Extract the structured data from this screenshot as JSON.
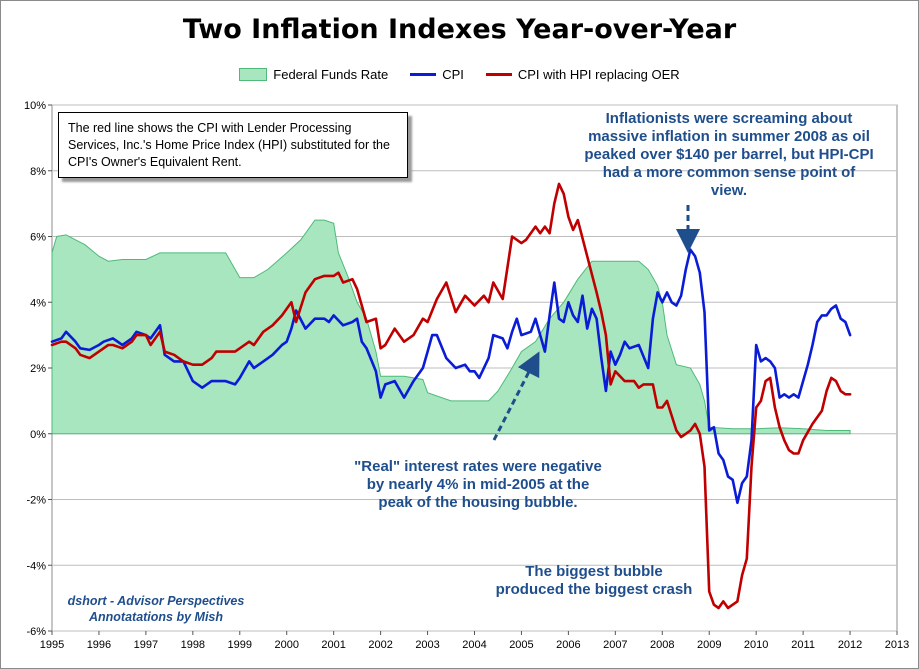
{
  "chart_data": {
    "type": "line",
    "title": "Two Inflation Indexes Year-over-Year",
    "xlim": [
      1995,
      2013
    ],
    "ylim": [
      -6,
      10
    ],
    "x_ticks": [
      "1995",
      "1996",
      "1997",
      "1998",
      "1999",
      "2000",
      "2001",
      "2002",
      "2003",
      "2004",
      "2005",
      "2006",
      "2007",
      "2008",
      "2009",
      "2010",
      "2011",
      "2012",
      "2013"
    ],
    "y_ticks": [
      "-6%",
      "-4%",
      "-2%",
      "0%",
      "2%",
      "4%",
      "6%",
      "8%",
      "10%"
    ],
    "y_tick_values": [
      -6,
      -4,
      -2,
      0,
      2,
      4,
      6,
      8,
      10
    ],
    "grid": true,
    "legend": "top",
    "series": [
      {
        "name": "Federal Funds Rate",
        "kind": "area",
        "color": "#a8e6bf",
        "stroke": "#4fb97a",
        "x": [
          1995.0,
          1995.1,
          1995.3,
          1995.5,
          1995.7,
          1996.0,
          1996.2,
          1996.5,
          1997.0,
          1997.3,
          1997.6,
          1998.0,
          1998.7,
          1998.9,
          1999.0,
          1999.3,
          1999.6,
          2000.0,
          2000.3,
          2000.6,
          2000.8,
          2001.0,
          2001.1,
          2001.3,
          2001.5,
          2001.7,
          2001.9,
          2002.0,
          2002.5,
          2002.9,
          2003.0,
          2003.5,
          2003.9,
          2004.3,
          2004.5,
          2004.8,
          2005.0,
          2005.3,
          2005.6,
          2005.9,
          2006.2,
          2006.5,
          2006.8,
          2007.0,
          2007.5,
          2007.7,
          2007.9,
          2008.0,
          2008.1,
          2008.3,
          2008.6,
          2008.8,
          2008.9,
          2009.0,
          2009.5,
          2010.0,
          2010.5,
          2011.0,
          2011.5,
          2012.0
        ],
        "values": [
          5.5,
          6.0,
          6.05,
          5.9,
          5.75,
          5.4,
          5.25,
          5.3,
          5.3,
          5.5,
          5.5,
          5.5,
          5.5,
          5.0,
          4.75,
          4.75,
          5.0,
          5.5,
          5.9,
          6.5,
          6.5,
          6.4,
          5.5,
          4.8,
          4.0,
          3.5,
          2.5,
          1.75,
          1.75,
          1.65,
          1.25,
          1.0,
          1.0,
          1.0,
          1.3,
          2.0,
          2.5,
          2.8,
          3.5,
          4.0,
          4.7,
          5.25,
          5.25,
          5.25,
          5.25,
          5.0,
          4.5,
          4.0,
          3.0,
          2.1,
          2.0,
          1.5,
          1.0,
          0.2,
          0.15,
          0.15,
          0.18,
          0.15,
          0.1,
          0.1
        ]
      },
      {
        "name": "CPI",
        "kind": "line",
        "color": "#0b1cd6",
        "x": [
          1995.0,
          1995.2,
          1995.3,
          1995.5,
          1995.6,
          1995.8,
          1996.0,
          1996.1,
          1996.3,
          1996.5,
          1996.7,
          1996.8,
          1997.0,
          1997.1,
          1997.3,
          1997.4,
          1997.6,
          1997.8,
          1998.0,
          1998.2,
          1998.4,
          1998.5,
          1998.7,
          1998.9,
          1999.0,
          1999.2,
          1999.3,
          1999.5,
          1999.7,
          1999.9,
          2000.0,
          2000.1,
          2000.2,
          2000.4,
          2000.6,
          2000.8,
          2000.9,
          2001.0,
          2001.2,
          2001.4,
          2001.5,
          2001.6,
          2001.7,
          2001.9,
          2002.0,
          2002.1,
          2002.3,
          2002.5,
          2002.7,
          2002.9,
          2003.0,
          2003.1,
          2003.2,
          2003.4,
          2003.6,
          2003.8,
          2003.9,
          2004.0,
          2004.1,
          2004.3,
          2004.4,
          2004.6,
          2004.7,
          2004.8,
          2004.9,
          2005.0,
          2005.2,
          2005.3,
          2005.5,
          2005.6,
          2005.7,
          2005.8,
          2005.9,
          2006.0,
          2006.1,
          2006.2,
          2006.3,
          2006.4,
          2006.5,
          2006.6,
          2006.7,
          2006.8,
          2006.9,
          2007.0,
          2007.1,
          2007.2,
          2007.3,
          2007.5,
          2007.7,
          2007.8,
          2007.9,
          2008.0,
          2008.1,
          2008.2,
          2008.3,
          2008.4,
          2008.5,
          2008.6,
          2008.7,
          2008.8,
          2008.9,
          2009.0,
          2009.1,
          2009.2,
          2009.3,
          2009.4,
          2009.5,
          2009.6,
          2009.7,
          2009.8,
          2009.9,
          2010.0,
          2010.1,
          2010.2,
          2010.3,
          2010.4,
          2010.5,
          2010.6,
          2010.7,
          2010.8,
          2010.9,
          2011.0,
          2011.1,
          2011.2,
          2011.3,
          2011.4,
          2011.5,
          2011.6,
          2011.7,
          2011.8,
          2011.9,
          2012.0
        ],
        "values": [
          2.8,
          2.9,
          3.1,
          2.8,
          2.6,
          2.55,
          2.7,
          2.8,
          2.9,
          2.7,
          2.9,
          3.1,
          3.0,
          2.9,
          3.3,
          2.4,
          2.2,
          2.2,
          1.6,
          1.4,
          1.6,
          1.6,
          1.6,
          1.5,
          1.7,
          2.2,
          2.0,
          2.2,
          2.4,
          2.7,
          2.8,
          3.2,
          3.75,
          3.2,
          3.5,
          3.5,
          3.4,
          3.6,
          3.3,
          3.4,
          3.5,
          2.8,
          2.6,
          1.9,
          1.1,
          1.5,
          1.6,
          1.1,
          1.6,
          2.0,
          2.5,
          3.0,
          3.0,
          2.3,
          2.0,
          2.1,
          1.9,
          1.9,
          1.7,
          2.3,
          3.0,
          2.9,
          2.6,
          3.1,
          3.5,
          3.0,
          3.1,
          3.5,
          2.5,
          3.6,
          4.6,
          3.5,
          3.4,
          4.0,
          3.6,
          3.4,
          4.2,
          3.2,
          3.8,
          3.5,
          2.3,
          1.3,
          2.5,
          2.1,
          2.4,
          2.8,
          2.6,
          2.7,
          2.0,
          3.5,
          4.3,
          4.0,
          4.3,
          4.0,
          3.9,
          4.2,
          5.0,
          5.6,
          5.4,
          4.9,
          3.7,
          0.1,
          0.2,
          -0.6,
          -0.8,
          -1.3,
          -1.4,
          -2.1,
          -1.5,
          -1.3,
          -0.2,
          2.7,
          2.2,
          2.3,
          2.2,
          2.0,
          1.1,
          1.2,
          1.1,
          1.2,
          1.1,
          1.6,
          2.1,
          2.7,
          3.4,
          3.6,
          3.6,
          3.8,
          3.9,
          3.5,
          3.4,
          3.0
        ]
      },
      {
        "name": "CPI with HPI replacing OER",
        "kind": "line",
        "color": "#c00000",
        "x": [
          1995.0,
          1995.2,
          1995.3,
          1995.5,
          1995.6,
          1995.8,
          1996.0,
          1996.2,
          1996.3,
          1996.5,
          1996.7,
          1996.8,
          1997.0,
          1997.1,
          1997.3,
          1997.4,
          1997.6,
          1997.8,
          1998.0,
          1998.2,
          1998.4,
          1998.5,
          1998.7,
          1998.9,
          1999.0,
          1999.2,
          1999.3,
          1999.5,
          1999.7,
          1999.9,
          2000.0,
          2000.1,
          2000.2,
          2000.4,
          2000.5,
          2000.6,
          2000.8,
          2000.9,
          2001.0,
          2001.1,
          2001.2,
          2001.4,
          2001.5,
          2001.6,
          2001.7,
          2001.9,
          2002.0,
          2002.1,
          2002.3,
          2002.5,
          2002.7,
          2002.9,
          2003.0,
          2003.2,
          2003.4,
          2003.6,
          2003.8,
          2004.0,
          2004.2,
          2004.3,
          2004.4,
          2004.6,
          2004.8,
          2005.0,
          2005.1,
          2005.3,
          2005.4,
          2005.5,
          2005.6,
          2005.7,
          2005.8,
          2005.9,
          2006.0,
          2006.1,
          2006.2,
          2006.4,
          2006.6,
          2006.7,
          2006.8,
          2006.9,
          2007.0,
          2007.2,
          2007.4,
          2007.5,
          2007.6,
          2007.8,
          2007.9,
          2008.0,
          2008.1,
          2008.3,
          2008.4,
          2008.5,
          2008.6,
          2008.7,
          2008.8,
          2008.9,
          2009.0,
          2009.1,
          2009.2,
          2009.3,
          2009.4,
          2009.5,
          2009.6,
          2009.7,
          2009.8,
          2009.9,
          2010.0,
          2010.1,
          2010.2,
          2010.3,
          2010.4,
          2010.5,
          2010.6,
          2010.7,
          2010.8,
          2010.9,
          2011.0,
          2011.2,
          2011.4,
          2011.5,
          2011.6,
          2011.7,
          2011.8,
          2011.9,
          2012.0
        ],
        "values": [
          2.7,
          2.8,
          2.8,
          2.6,
          2.4,
          2.3,
          2.5,
          2.7,
          2.7,
          2.6,
          2.8,
          3.0,
          3.0,
          2.7,
          3.1,
          2.5,
          2.4,
          2.2,
          2.1,
          2.1,
          2.3,
          2.5,
          2.5,
          2.5,
          2.6,
          2.8,
          2.7,
          3.1,
          3.3,
          3.6,
          3.8,
          4.0,
          3.4,
          4.3,
          4.5,
          4.7,
          4.8,
          4.8,
          4.8,
          4.9,
          4.6,
          4.7,
          4.4,
          3.9,
          3.4,
          3.5,
          2.6,
          2.7,
          3.2,
          2.8,
          3.0,
          3.5,
          3.4,
          4.1,
          4.6,
          3.7,
          4.2,
          3.9,
          4.2,
          4.0,
          4.6,
          4.1,
          6.0,
          5.8,
          5.9,
          6.3,
          6.1,
          6.3,
          6.1,
          7.0,
          7.6,
          7.3,
          6.6,
          6.2,
          6.5,
          5.4,
          4.3,
          3.7,
          3.0,
          1.5,
          1.9,
          1.6,
          1.6,
          1.4,
          1.5,
          1.5,
          0.8,
          0.8,
          1.0,
          0.1,
          -0.1,
          0.0,
          0.1,
          0.3,
          0.0,
          -1.0,
          -4.8,
          -5.2,
          -5.3,
          -5.1,
          -5.3,
          -5.2,
          -5.1,
          -4.3,
          -3.8,
          -1.0,
          0.8,
          1.0,
          1.6,
          1.7,
          0.8,
          0.2,
          -0.2,
          -0.5,
          -0.6,
          -0.6,
          -0.2,
          0.3,
          0.7,
          1.3,
          1.7,
          1.6,
          1.3,
          1.2,
          1.2
        ]
      }
    ]
  },
  "infobox_text": "The red line shows the CPI with Lender Processing Services, Inc.'s  Home Price Index (HPI) substituted for the CPI's Owner's Equivalent Rent.",
  "annotations": {
    "inflationists": "Inflationists were screaming about massive inflation in summer 2008 as oil peaked over $140 per barrel, but HPI-CPI had a more common sense point of view.",
    "real_rates": "\"Real\" interest rates were negative by nearly 4% in mid-2005 at the peak of the housing bubble.",
    "bubble": "The biggest bubble produced the biggest crash"
  },
  "credit": {
    "line1": "dshort - Advisor Perspectives",
    "line2": "Annotatations by Mish"
  }
}
